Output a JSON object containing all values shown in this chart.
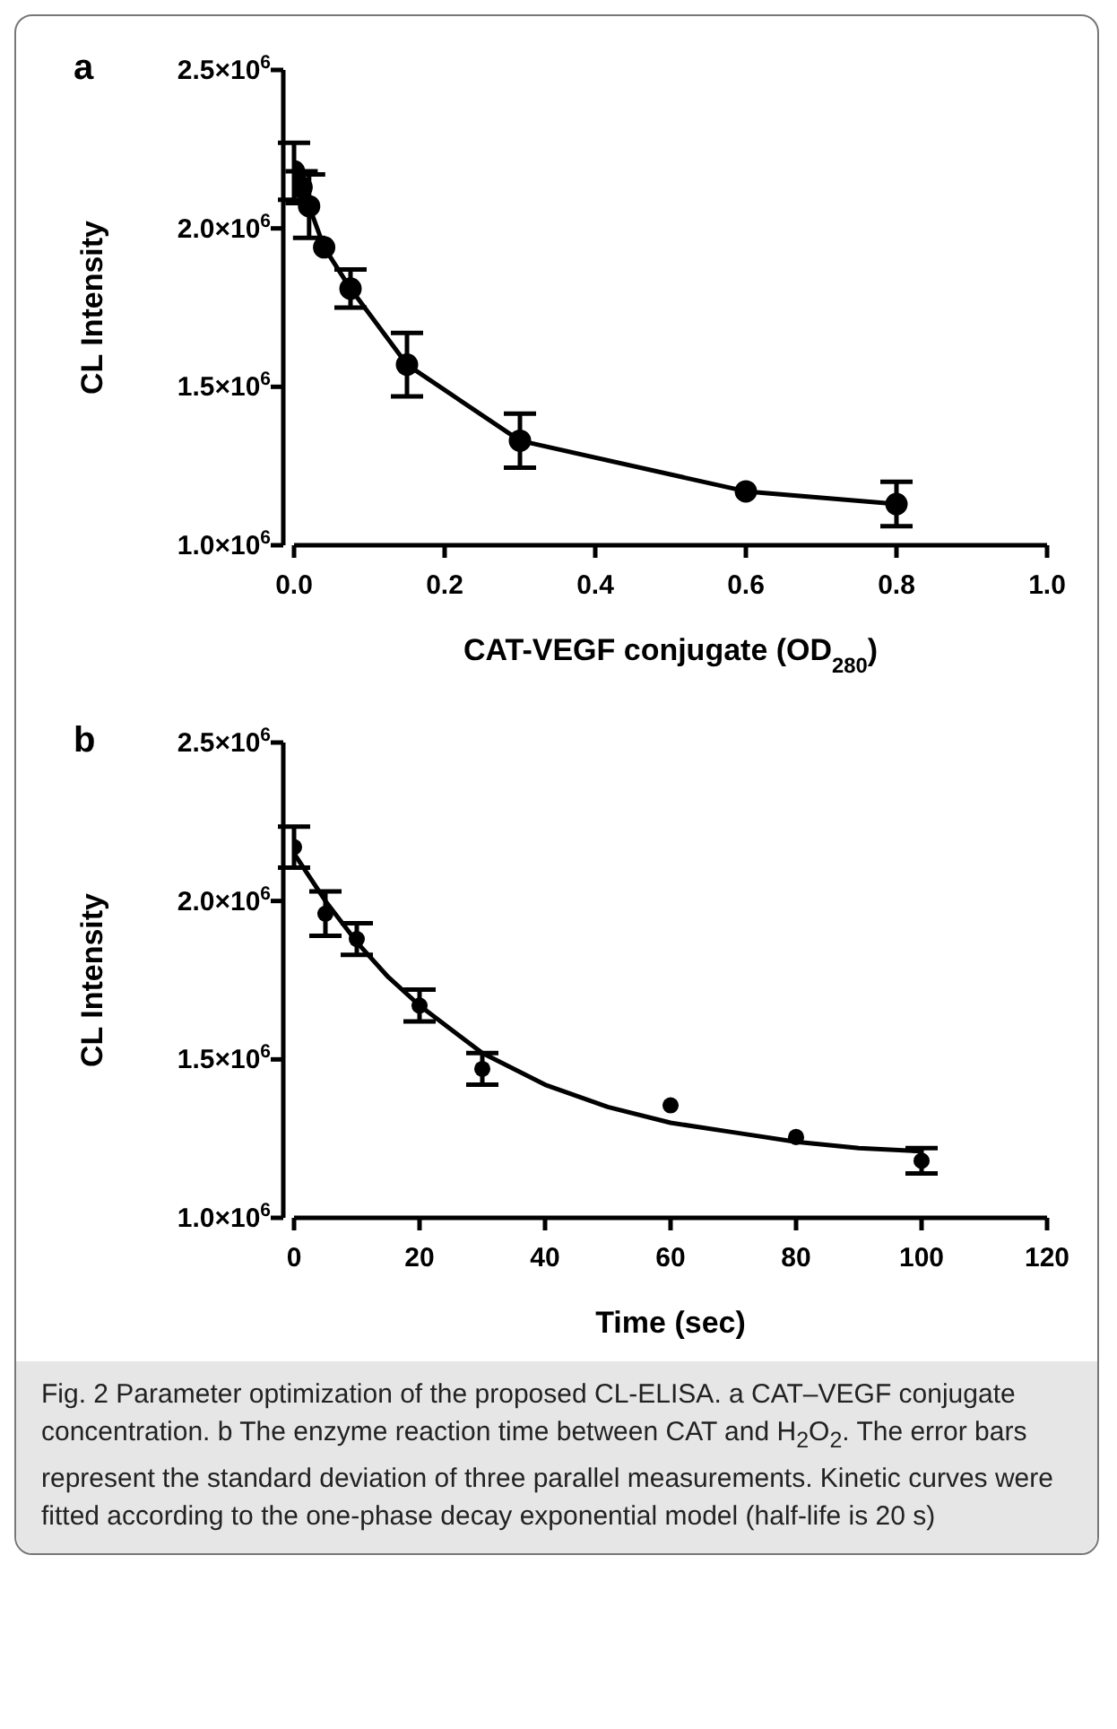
{
  "chart_data": [
    {
      "type": "line",
      "title": "a",
      "xlabel": "CAT-VEGF conjugate (OD$_{280}$)",
      "ylabel": "CL Intensity",
      "x": [
        0,
        0.01,
        0.02,
        0.04,
        0.075,
        0.15,
        0.3,
        0.6,
        0.8
      ],
      "series": [
        {
          "color": "#000000",
          "marker": "circle",
          "values": [
            2180000,
            2130000,
            2070000,
            1940000,
            1810000,
            1570000,
            1330000,
            1170000,
            1130000
          ],
          "errors": [
            90000,
            50000,
            100000,
            null,
            60000,
            100000,
            85000,
            null,
            70000
          ]
        }
      ],
      "xlim": [
        0,
        1
      ],
      "xticks": [
        {
          "value": 0,
          "label": "0.0"
        },
        0.2,
        0.4,
        0.6,
        0.8,
        {
          "value": 1,
          "label": "1.0"
        }
      ],
      "ylim": [
        1000000,
        2500000
      ],
      "yticks": [
        {
          "value": 1000000,
          "label": "1.0×10$^{6}$"
        },
        {
          "value": 1500000,
          "label": "1.5×10$^{6}$"
        },
        {
          "value": 2000000,
          "label": "2.0×10$^{6}$"
        },
        {
          "value": 2500000,
          "label": "2.5×10$^{6}$"
        }
      ],
      "grid": false,
      "legend": false
    },
    {
      "type": "scatter",
      "title": "b",
      "xlabel": "Time (sec)",
      "ylabel": "CL Intensity",
      "x": [
        0,
        5,
        10,
        20,
        30,
        60,
        80,
        100
      ],
      "series": [
        {
          "color": "#000000",
          "marker": "circle",
          "values": [
            2170000,
            1960000,
            1880000,
            1670000,
            1470000,
            1355000,
            1255000,
            1180000
          ],
          "errors": [
            65000,
            70000,
            50000,
            50000,
            50000,
            null,
            null,
            40000
          ]
        },
        {
          "type": "line",
          "color": "#000000",
          "marker": "none",
          "x": [
            0,
            5,
            10,
            15,
            20,
            30,
            40,
            50,
            60,
            70,
            80,
            90,
            100
          ],
          "values": [
            2150000,
            2000000,
            1870000,
            1760000,
            1670000,
            1520000,
            1420000,
            1350000,
            1300000,
            1270000,
            1240000,
            1220000,
            1210000
          ]
        }
      ],
      "xlim": [
        0,
        120
      ],
      "xticks": [
        0,
        20,
        40,
        60,
        80,
        100,
        120
      ],
      "ylim": [
        1000000,
        2500000
      ],
      "yticks": [
        {
          "value": 1000000,
          "label": "1.0×10$^{6}$"
        },
        {
          "value": 1500000,
          "label": "1.5×10$^{6}$"
        },
        {
          "value": 2000000,
          "label": "2.0×10$^{6}$"
        },
        {
          "value": 2500000,
          "label": "2.5×10$^{6}$"
        }
      ],
      "grid": false,
      "legend": false,
      "annotations": [
        "Fig. 2  Parameter optimization of the proposed CL-ELISA. a CAT–VEGF conjugate concentration. b The enzyme reaction time between CAT and H$_{2}$O$_{2}$. The error bars represent the standard deviation of three parallel measurements. Kinetic curves were fitted according to the one-phase decay exponential model (half-life is 20 s)"
      ]
    }
  ]
}
